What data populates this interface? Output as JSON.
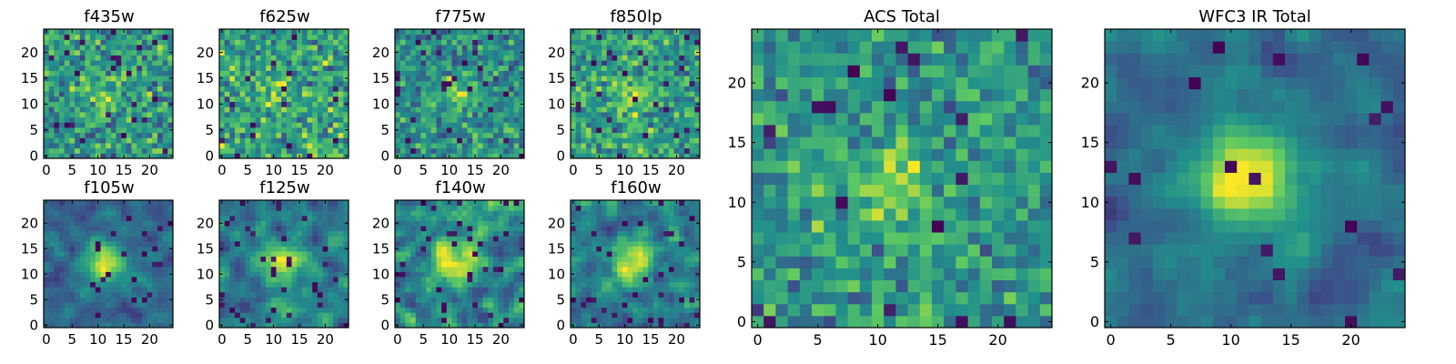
{
  "figure": {
    "cmap": "viridis",
    "cmap_stops": [
      "#440154",
      "#3b528b",
      "#21918c",
      "#5ec962",
      "#fde725"
    ]
  },
  "chart_data": [
    {
      "type": "heatmap",
      "title": "f435w",
      "grid_size": [
        25,
        25
      ],
      "xlim": [
        -0.5,
        24.5
      ],
      "ylim": [
        -0.5,
        24.5
      ],
      "xticks": [
        0,
        5,
        10,
        15,
        20
      ],
      "yticks": [
        0,
        5,
        10,
        15,
        20
      ],
      "origin": "lower",
      "grid": false,
      "seed": 101,
      "blob": 0.15,
      "blur": 0,
      "dark": 0.05
    },
    {
      "type": "heatmap",
      "title": "f625w",
      "grid_size": [
        25,
        25
      ],
      "xlim": [
        -0.5,
        24.5
      ],
      "ylim": [
        -0.5,
        24.5
      ],
      "xticks": [
        0,
        5,
        10,
        15,
        20
      ],
      "yticks": [
        0,
        5,
        10,
        15,
        20
      ],
      "origin": "lower",
      "grid": false,
      "seed": 202,
      "blob": 0.15,
      "blur": 0,
      "dark": 0.04
    },
    {
      "type": "heatmap",
      "title": "f775w",
      "grid_size": [
        25,
        25
      ],
      "xlim": [
        -0.5,
        24.5
      ],
      "ylim": [
        -0.5,
        24.5
      ],
      "xticks": [
        0,
        5,
        10,
        15,
        20
      ],
      "yticks": [
        0,
        5,
        10,
        15,
        20
      ],
      "origin": "lower",
      "grid": false,
      "seed": 303,
      "blob": 0.3,
      "blur": 0,
      "dark": 0.05
    },
    {
      "type": "heatmap",
      "title": "f850lp",
      "grid_size": [
        25,
        25
      ],
      "xlim": [
        -0.5,
        24.5
      ],
      "ylim": [
        -0.5,
        24.5
      ],
      "xticks": [
        0,
        5,
        10,
        15,
        20
      ],
      "yticks": [
        0,
        5,
        10,
        15,
        20
      ],
      "origin": "lower",
      "grid": false,
      "seed": 404,
      "blob": 0.25,
      "blur": 0,
      "dark": 0.05
    },
    {
      "type": "heatmap",
      "title": "f105w",
      "grid_size": [
        25,
        25
      ],
      "xlim": [
        -0.5,
        24.5
      ],
      "ylim": [
        -0.5,
        24.5
      ],
      "xticks": [
        0,
        5,
        10,
        15,
        20
      ],
      "yticks": [
        0,
        5,
        10,
        15,
        20
      ],
      "origin": "lower",
      "grid": false,
      "seed": 505,
      "blob": 0.55,
      "blur": 1,
      "dark": 0.04
    },
    {
      "type": "heatmap",
      "title": "f125w",
      "grid_size": [
        25,
        25
      ],
      "xlim": [
        -0.5,
        24.5
      ],
      "ylim": [
        -0.5,
        24.5
      ],
      "xticks": [
        0,
        5,
        10,
        15,
        20
      ],
      "yticks": [
        0,
        5,
        10,
        15,
        20
      ],
      "origin": "lower",
      "grid": false,
      "seed": 606,
      "blob": 0.35,
      "blur": 1,
      "dark": 0.04
    },
    {
      "type": "heatmap",
      "title": "f140w",
      "grid_size": [
        25,
        25
      ],
      "xlim": [
        -0.5,
        24.5
      ],
      "ylim": [
        -0.5,
        24.5
      ],
      "xticks": [
        0,
        5,
        10,
        15,
        20
      ],
      "yticks": [
        0,
        5,
        10,
        15,
        20
      ],
      "origin": "lower",
      "grid": false,
      "seed": 707,
      "blob": 0.35,
      "blur": 1,
      "dark": 0.05
    },
    {
      "type": "heatmap",
      "title": "f160w",
      "grid_size": [
        25,
        25
      ],
      "xlim": [
        -0.5,
        24.5
      ],
      "ylim": [
        -0.5,
        24.5
      ],
      "xticks": [
        0,
        5,
        10,
        15,
        20
      ],
      "yticks": [
        0,
        5,
        10,
        15,
        20
      ],
      "origin": "lower",
      "grid": false,
      "seed": 808,
      "blob": 0.4,
      "blur": 1,
      "dark": 0.05
    },
    {
      "type": "heatmap",
      "title": "ACS Total",
      "grid_size": [
        25,
        25
      ],
      "xlim": [
        -0.5,
        24.5
      ],
      "ylim": [
        -0.5,
        24.5
      ],
      "xticks": [
        0,
        5,
        10,
        15,
        20
      ],
      "yticks": [
        0,
        5,
        10,
        15,
        20
      ],
      "origin": "lower",
      "grid": false,
      "seed": 909,
      "blob": 0.35,
      "blur": 0,
      "dark": 0.03
    },
    {
      "type": "heatmap",
      "title": "WFC3 IR Total",
      "grid_size": [
        25,
        25
      ],
      "xlim": [
        -0.5,
        24.5
      ],
      "ylim": [
        -0.5,
        24.5
      ],
      "xticks": [
        0,
        5,
        10,
        15,
        20
      ],
      "yticks": [
        0,
        5,
        10,
        15,
        20
      ],
      "origin": "lower",
      "grid": false,
      "seed": 1010,
      "blob": 0.85,
      "blur": 1,
      "dark": 0.03
    }
  ]
}
